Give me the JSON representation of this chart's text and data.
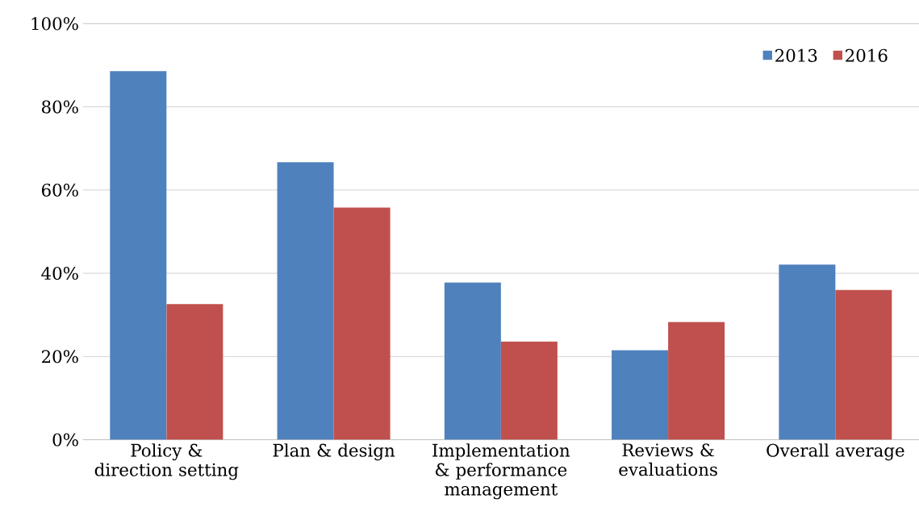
{
  "chart_data": {
    "type": "bar",
    "categories": [
      "Policy & direction setting",
      "Plan & design",
      "Implementation & performance management",
      "Reviews & evaluations",
      "Overall average"
    ],
    "series": [
      {
        "name": "2013",
        "color": "#4f81bd",
        "values": [
          88.6,
          66.7,
          37.8,
          21.5,
          42.1
        ]
      },
      {
        "name": "2016",
        "color": "#c0504d",
        "values": [
          32.6,
          55.8,
          23.6,
          28.3,
          36.0
        ]
      }
    ],
    "ylim": [
      0,
      100
    ],
    "yticks": [
      {
        "value": 0,
        "label": "0%"
      },
      {
        "value": 20,
        "label": "20%"
      },
      {
        "value": 40,
        "label": "40%"
      },
      {
        "value": 60,
        "label": "60%"
      },
      {
        "value": 80,
        "label": "80%"
      },
      {
        "value": 100,
        "label": "100%"
      }
    ],
    "grid": "y",
    "legend": "top right"
  }
}
